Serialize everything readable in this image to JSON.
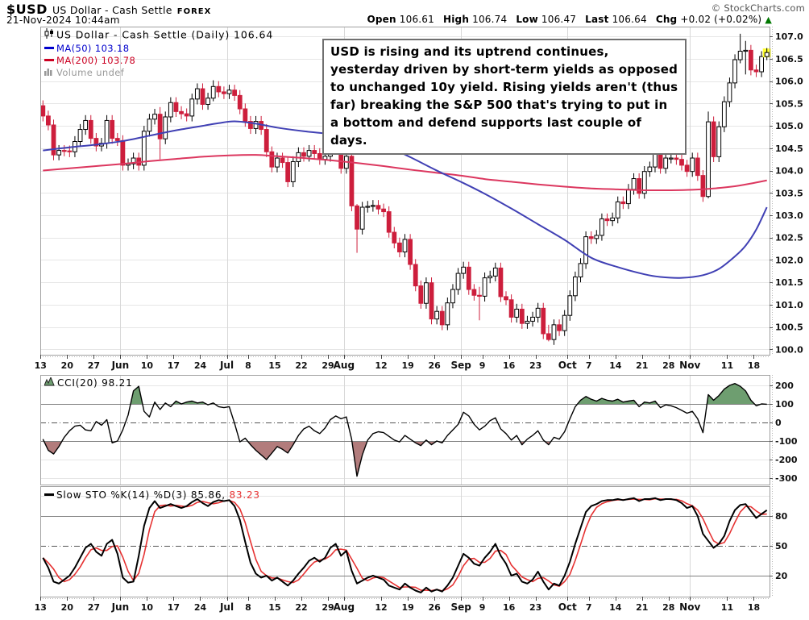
{
  "header": {
    "symbol": "$USD",
    "name": "US Dollar - Cash Settle",
    "exchange": "FOREX",
    "copyright": "© StockCharts.com",
    "datetime": "21-Nov-2024 10:44am",
    "quote": {
      "open_label": "Open",
      "open": "106.61",
      "high_label": "High",
      "high": "106.74",
      "low_label": "Low",
      "low": "106.47",
      "last_label": "Last",
      "last": "106.64",
      "chg_label": "Chg",
      "chg": "+0.02 (+0.02%)",
      "direction_icon": "▲"
    }
  },
  "main_legend": {
    "title": "US Dollar - Cash Settle (Daily) 106.64",
    "ma50": "MA(50) 103.18",
    "ma200": "MA(200) 103.78",
    "volume": "Volume undef"
  },
  "annotation": {
    "text": "USD is rising and its uptrend continues, yesterday driven by short-term yields as opposed to unchanged 10y yield. Rising yields aren't (thus far) breaking the S&P 500 that's trying to put in a bottom and defend supports last couple of days."
  },
  "cci_legend": {
    "label": "CCI(20) 98.21"
  },
  "sto_legend": {
    "label": "Slow STO %K(14) %D(3) 85.86,",
    "d_value": "83.23"
  },
  "colors": {
    "down_candle": "#cd1e3c",
    "up_candle": "#ffffff",
    "neutral_candle": "#000000",
    "ma50": "#4040b4",
    "ma200": "#dc375f",
    "cci_line": "#000000",
    "cci_fill_above": "#6e9e70",
    "cci_fill_below": "#b27c7c",
    "sto_k": "#000000",
    "sto_d": "#e63232",
    "highlight": "#ffff33",
    "grid": "#e6e6e6",
    "grid_month": "#d8d8d8",
    "border": "#a0a0a0",
    "ref_line": "#808080",
    "zero_line": "#555555",
    "chg_up": "#007700"
  },
  "chart_data": [
    {
      "type": "candlestick",
      "title": "US Dollar - Cash Settle (Daily)",
      "last": 106.64,
      "ylim": [
        99.88,
        107.22
      ],
      "y_ticks": [
        100.0,
        100.5,
        101.0,
        101.5,
        102.0,
        102.5,
        103.0,
        103.5,
        104.0,
        104.5,
        105.0,
        105.5,
        106.0,
        106.5,
        107.0
      ],
      "x_ticks": [
        {
          "i": 0,
          "label": "13"
        },
        {
          "i": 5,
          "label": "20"
        },
        {
          "i": 10,
          "label": "27"
        },
        {
          "i": 15,
          "label": "Jun",
          "bold": true
        },
        {
          "i": 20,
          "label": "10"
        },
        {
          "i": 25,
          "label": "17"
        },
        {
          "i": 30,
          "label": "24"
        },
        {
          "i": 35,
          "label": "Jul",
          "bold": true
        },
        {
          "i": 39,
          "label": "8"
        },
        {
          "i": 44,
          "label": "15"
        },
        {
          "i": 49,
          "label": "22"
        },
        {
          "i": 54,
          "label": "29"
        },
        {
          "i": 57,
          "label": "Aug",
          "bold": true
        },
        {
          "i": 64,
          "label": "12"
        },
        {
          "i": 69,
          "label": "19"
        },
        {
          "i": 74,
          "label": "26"
        },
        {
          "i": 79,
          "label": "Sep",
          "bold": true
        },
        {
          "i": 83,
          "label": "9"
        },
        {
          "i": 88,
          "label": "16"
        },
        {
          "i": 93,
          "label": "23"
        },
        {
          "i": 99,
          "label": "Oct",
          "bold": true
        },
        {
          "i": 103,
          "label": "7"
        },
        {
          "i": 108,
          "label": "14"
        },
        {
          "i": 113,
          "label": "21"
        },
        {
          "i": 118,
          "label": "28"
        },
        {
          "i": 122,
          "label": "Nov",
          "bold": true
        },
        {
          "i": 129,
          "label": "11"
        },
        {
          "i": 134,
          "label": "18"
        }
      ],
      "month_gridlines": [
        15,
        35,
        57,
        79,
        99,
        122
      ],
      "open": [
        105.45,
        105.22,
        105.02,
        104.35,
        104.45,
        104.44,
        104.42,
        104.65,
        104.92,
        105.12,
        104.72,
        104.55,
        104.61,
        105.12,
        104.72,
        104.67,
        104.12,
        104.15,
        104.28,
        104.12,
        104.88,
        105.15,
        105.26,
        104.71,
        105.2,
        105.52,
        105.32,
        105.27,
        105.22,
        105.6,
        105.83,
        105.48,
        105.62,
        105.88,
        105.76,
        105.72,
        105.8,
        105.68,
        105.38,
        105.1,
        104.94,
        105.1,
        104.92,
        104.42,
        104.08,
        104.28,
        104.18,
        103.75,
        104.2,
        104.4,
        104.32,
        104.45,
        104.38,
        104.25,
        104.32,
        104.58,
        104.55,
        104.05,
        104.32,
        103.21,
        102.69,
        103.18,
        103.2,
        103.22,
        103.14,
        103.08,
        102.62,
        102.38,
        102.18,
        102.46,
        101.9,
        101.42,
        101.03,
        101.49,
        100.68,
        100.85,
        100.55,
        101.04,
        101.34,
        101.7,
        101.84,
        101.34,
        101.21,
        101.19,
        101.6,
        101.64,
        101.82,
        101.18,
        101.11,
        100.72,
        100.9,
        100.58,
        100.63,
        100.72,
        100.92,
        100.35,
        100.22,
        100.55,
        100.42,
        100.76,
        101.2,
        101.62,
        101.92,
        102.52,
        102.48,
        102.55,
        102.92,
        102.88,
        102.94,
        103.3,
        103.26,
        103.58,
        103.82,
        103.49,
        103.98,
        104.08,
        104.42,
        104.05,
        104.28,
        104.28,
        104.25,
        104.12,
        103.98,
        104.28,
        103.89,
        103.42,
        105.09,
        104.31,
        104.98,
        105.54,
        105.96,
        106.48,
        106.67,
        106.69,
        106.25,
        106.21,
        106.55
      ],
      "close": [
        105.22,
        105.02,
        104.35,
        104.45,
        104.44,
        104.42,
        104.65,
        104.92,
        105.12,
        104.72,
        104.55,
        104.61,
        105.12,
        104.72,
        104.67,
        104.12,
        104.15,
        104.28,
        104.12,
        104.88,
        105.15,
        105.26,
        104.71,
        105.2,
        105.52,
        105.32,
        105.27,
        105.22,
        105.6,
        105.83,
        105.48,
        105.62,
        105.88,
        105.76,
        105.72,
        105.8,
        105.68,
        105.38,
        105.1,
        104.94,
        105.1,
        104.92,
        104.42,
        104.08,
        104.28,
        104.18,
        103.75,
        104.2,
        104.4,
        104.32,
        104.45,
        104.38,
        104.25,
        104.32,
        104.58,
        104.55,
        104.05,
        104.32,
        103.21,
        102.69,
        103.18,
        103.2,
        103.22,
        103.14,
        103.08,
        102.62,
        102.38,
        102.18,
        102.46,
        101.9,
        101.42,
        101.03,
        101.49,
        100.68,
        100.85,
        100.55,
        101.04,
        101.34,
        101.7,
        101.84,
        101.34,
        101.21,
        101.19,
        101.6,
        101.64,
        101.82,
        101.18,
        101.11,
        100.72,
        100.9,
        100.58,
        100.63,
        100.72,
        100.92,
        100.35,
        100.22,
        100.55,
        100.42,
        100.76,
        101.2,
        101.62,
        101.92,
        102.52,
        102.48,
        102.55,
        102.92,
        102.88,
        102.94,
        103.3,
        103.26,
        103.58,
        103.82,
        103.49,
        103.98,
        104.08,
        104.42,
        104.05,
        104.28,
        104.28,
        104.25,
        104.12,
        103.98,
        104.28,
        103.89,
        103.42,
        105.09,
        104.31,
        104.98,
        105.54,
        105.96,
        106.48,
        106.67,
        106.69,
        106.25,
        106.21,
        106.55,
        106.64
      ],
      "wick_pad": 0.12,
      "wick_overrides": {
        "22": [
          105.42,
          104.25
        ],
        "32": [
          106.02,
          105.55
        ],
        "59": [
          103.25,
          102.16
        ],
        "82": [
          101.4,
          100.65
        ],
        "95": [
          100.55,
          100.18
        ],
        "125": [
          105.32,
          103.38
        ],
        "131": [
          107.06,
          106.4
        ],
        "132": [
          106.9,
          106.15
        ],
        "136": [
          106.74,
          106.47
        ]
      },
      "ma50": [
        [
          0,
          104.45
        ],
        [
          5,
          104.52
        ],
        [
          10,
          104.58
        ],
        [
          15,
          104.66
        ],
        [
          20,
          104.78
        ],
        [
          25,
          104.9
        ],
        [
          30,
          105.0
        ],
        [
          33,
          105.06
        ],
        [
          36,
          105.1
        ],
        [
          40,
          105.05
        ],
        [
          44,
          104.96
        ],
        [
          49,
          104.88
        ],
        [
          54,
          104.82
        ],
        [
          57,
          104.78
        ],
        [
          60,
          104.72
        ],
        [
          64,
          104.58
        ],
        [
          69,
          104.3
        ],
        [
          74,
          104.0
        ],
        [
          79,
          103.72
        ],
        [
          83,
          103.48
        ],
        [
          88,
          103.15
        ],
        [
          93,
          102.8
        ],
        [
          98,
          102.45
        ],
        [
          103,
          102.05
        ],
        [
          108,
          101.84
        ],
        [
          113,
          101.68
        ],
        [
          116,
          101.62
        ],
        [
          120,
          101.6
        ],
        [
          124,
          101.66
        ],
        [
          127,
          101.8
        ],
        [
          130,
          102.08
        ],
        [
          132,
          102.32
        ],
        [
          134,
          102.68
        ],
        [
          136,
          103.18
        ]
      ],
      "ma200": [
        [
          0,
          104.0
        ],
        [
          5,
          104.05
        ],
        [
          10,
          104.1
        ],
        [
          15,
          104.15
        ],
        [
          20,
          104.21
        ],
        [
          25,
          104.26
        ],
        [
          30,
          104.31
        ],
        [
          35,
          104.34
        ],
        [
          40,
          104.35
        ],
        [
          44,
          104.32
        ],
        [
          49,
          104.28
        ],
        [
          54,
          104.23
        ],
        [
          59,
          104.17
        ],
        [
          64,
          104.1
        ],
        [
          69,
          104.02
        ],
        [
          74,
          103.95
        ],
        [
          79,
          103.88
        ],
        [
          83,
          103.81
        ],
        [
          88,
          103.75
        ],
        [
          93,
          103.69
        ],
        [
          98,
          103.64
        ],
        [
          103,
          103.6
        ],
        [
          108,
          103.58
        ],
        [
          113,
          103.56
        ],
        [
          118,
          103.56
        ],
        [
          122,
          103.57
        ],
        [
          126,
          103.6
        ],
        [
          130,
          103.65
        ],
        [
          133,
          103.71
        ],
        [
          136,
          103.78
        ]
      ]
    },
    {
      "type": "line",
      "name": "CCI(20)",
      "last": 98.21,
      "ylim": [
        -334.8,
        256.5
      ],
      "y_ticks": [
        200,
        100,
        0,
        -100,
        -200,
        -300
      ],
      "ref_solid": [
        100,
        -100
      ],
      "ref_dashdot": [
        0
      ],
      "light_grid": [
        200,
        -200,
        -300
      ],
      "fill_above": 100,
      "fill_below": -100,
      "values": [
        -90,
        -150,
        -170,
        -130,
        -80,
        -45,
        -20,
        -15,
        -40,
        -45,
        5,
        -15,
        15,
        -110,
        -100,
        -40,
        40,
        170,
        195,
        60,
        30,
        110,
        70,
        105,
        85,
        115,
        100,
        110,
        115,
        105,
        110,
        95,
        105,
        85,
        80,
        85,
        -5,
        -105,
        -85,
        -120,
        -150,
        -175,
        -200,
        -165,
        -130,
        -145,
        -165,
        -120,
        -70,
        -35,
        -20,
        -45,
        -60,
        -30,
        15,
        35,
        20,
        30,
        -90,
        -290,
        -175,
        -95,
        -60,
        -50,
        -55,
        -75,
        -95,
        -105,
        -70,
        -90,
        -110,
        -125,
        -95,
        -120,
        -100,
        -110,
        -70,
        -40,
        -10,
        55,
        35,
        -10,
        -40,
        -20,
        10,
        25,
        -35,
        -60,
        -95,
        -70,
        -120,
        -90,
        -70,
        -45,
        -95,
        -120,
        -80,
        -90,
        -50,
        20,
        85,
        120,
        140,
        125,
        115,
        130,
        120,
        115,
        125,
        110,
        115,
        120,
        85,
        110,
        105,
        115,
        80,
        95,
        90,
        80,
        65,
        50,
        60,
        20,
        -55,
        150,
        120,
        145,
        180,
        200,
        210,
        195,
        170,
        120,
        90,
        100,
        98.21
      ]
    },
    {
      "type": "line",
      "name": "Slow STO %K(14) %D(3)",
      "k_last": 85.86,
      "d_last": 83.23,
      "ylim": [
        -1.1,
        110
      ],
      "y_ticks": [
        80,
        50,
        20
      ],
      "ref_solid": [
        80,
        20
      ],
      "ref_dashdot": [
        50
      ],
      "light_grid": [
        100
      ],
      "d_rule": "sma3_of_k",
      "k": [
        38,
        28,
        14,
        12,
        16,
        20,
        28,
        38,
        48,
        52,
        44,
        40,
        52,
        56,
        42,
        18,
        13,
        14,
        40,
        70,
        88,
        95,
        88,
        90,
        92,
        90,
        88,
        90,
        94,
        97,
        93,
        90,
        94,
        96,
        95,
        96,
        90,
        76,
        54,
        33,
        22,
        18,
        20,
        15,
        18,
        14,
        10,
        15,
        22,
        28,
        35,
        38,
        34,
        38,
        48,
        52,
        40,
        45,
        25,
        12,
        15,
        18,
        20,
        18,
        16,
        10,
        8,
        6,
        12,
        8,
        5,
        3,
        8,
        4,
        6,
        4,
        10,
        18,
        30,
        42,
        38,
        32,
        30,
        38,
        44,
        52,
        40,
        32,
        20,
        22,
        14,
        12,
        16,
        24,
        14,
        6,
        12,
        10,
        20,
        34,
        52,
        68,
        84,
        90,
        92,
        95,
        96,
        96,
        97,
        96,
        97,
        98,
        95,
        97,
        97,
        98,
        96,
        97,
        97,
        96,
        93,
        88,
        90,
        80,
        62,
        55,
        48,
        52,
        60,
        75,
        86,
        91,
        92,
        85,
        78,
        82,
        85.86
      ]
    }
  ]
}
